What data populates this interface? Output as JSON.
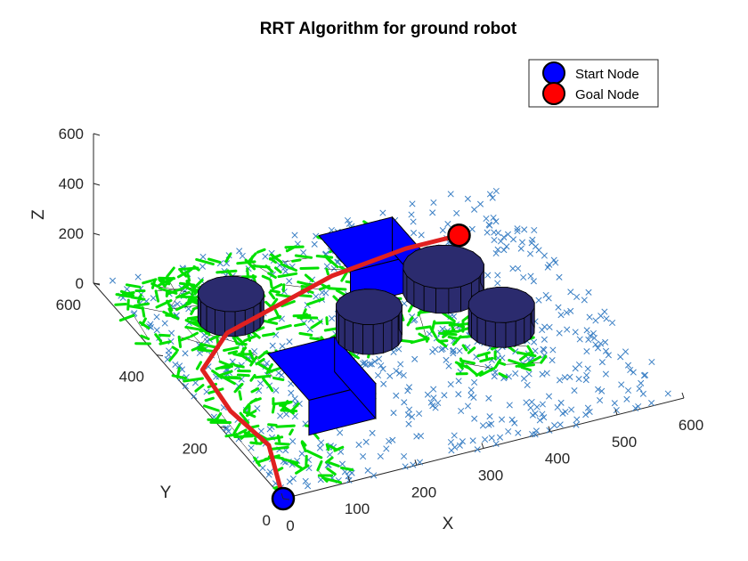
{
  "chart_data": {
    "type": "scatter",
    "title": "RRT Algorithm for ground robot",
    "xlabel": "X",
    "ylabel": "Y",
    "zlabel": "Z",
    "xlim": [
      0,
      600
    ],
    "ylim": [
      0,
      600
    ],
    "zlim": [
      0,
      600
    ],
    "x_ticks": [
      "0",
      "100",
      "200",
      "300",
      "400",
      "500",
      "600"
    ],
    "y_ticks": [
      "0",
      "200",
      "400",
      "600"
    ],
    "z_ticks": [
      "0",
      "200",
      "400",
      "600"
    ],
    "legend": {
      "placement": "top-right",
      "entries": [
        {
          "label": "Start Node",
          "color": "#0000ff"
        },
        {
          "label": "Goal Node",
          "color": "#ff0000"
        }
      ]
    },
    "start_node": {
      "x": 0,
      "y": 0,
      "z": 0
    },
    "goal_node": {
      "x": 500,
      "y": 500,
      "z": 0
    },
    "path": [
      {
        "x": 0,
        "y": 0
      },
      {
        "x": 40,
        "y": 130
      },
      {
        "x": 30,
        "y": 230
      },
      {
        "x": 40,
        "y": 340
      },
      {
        "x": 110,
        "y": 410
      },
      {
        "x": 300,
        "y": 480
      },
      {
        "x": 420,
        "y": 500
      },
      {
        "x": 500,
        "y": 500
      }
    ],
    "obstacles": {
      "boxes": [
        {
          "x": [
            100,
            200
          ],
          "y": [
            130,
            260
          ],
          "z": [
            0,
            140
          ]
        },
        {
          "x": [
            290,
            400
          ],
          "y": [
            400,
            500
          ],
          "z": [
            0,
            140
          ]
        }
      ],
      "cylinders": [
        {
          "cx": 130,
          "cy": 440,
          "r": 45,
          "h": 100
        },
        {
          "cx": 280,
          "cy": 320,
          "r": 45,
          "h": 120
        },
        {
          "cx": 420,
          "cy": 380,
          "r": 55,
          "h": 100
        },
        {
          "cx": 450,
          "cy": 260,
          "r": 45,
          "h": 100
        }
      ]
    },
    "colors": {
      "samples": "#3a7fc4",
      "tree": "#00e000",
      "edges": "#000000",
      "path": "#e02020",
      "obstacle_box": "#0000ff",
      "obstacle_cylinder": "#2b2b6e",
      "axes": "#262626"
    },
    "grid": false
  }
}
